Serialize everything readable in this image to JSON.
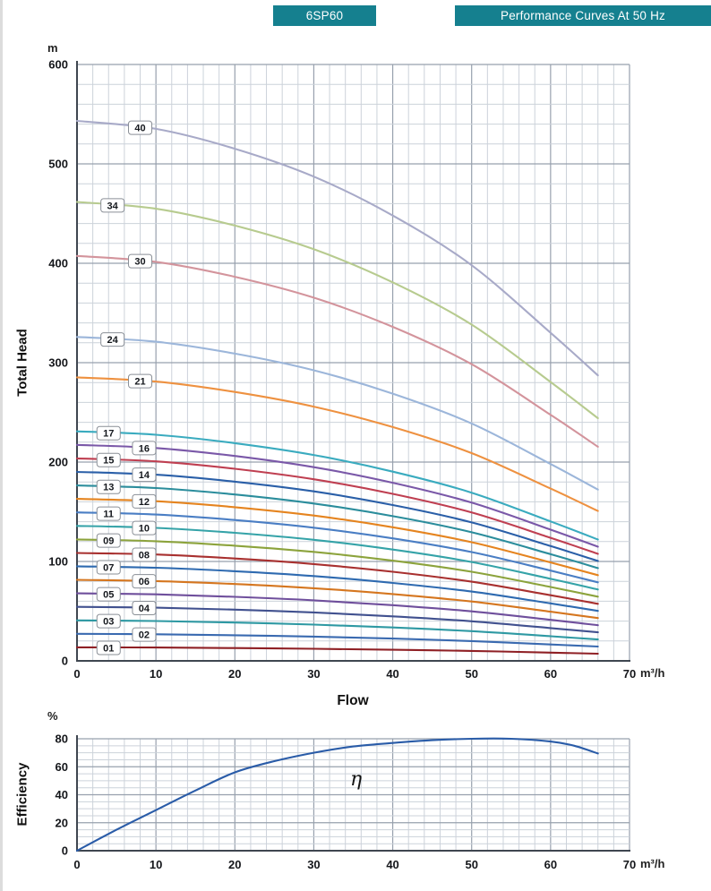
{
  "header": {
    "model": "6SP60",
    "title": "Performance Curves At 50 Hz",
    "badge_color": "#15808f"
  },
  "chart_data": [
    {
      "type": "line",
      "title": "Total Head vs Flow",
      "xlabel": "Flow",
      "ylabel": "Total Head",
      "x_unit": "m³/h",
      "y_unit": "m",
      "xlim": [
        0,
        70
      ],
      "ylim": [
        0,
        600
      ],
      "x_ticks": [
        0,
        10,
        20,
        30,
        40,
        50,
        60,
        70
      ],
      "y_ticks": [
        0,
        100,
        200,
        300,
        400,
        500,
        600
      ],
      "grid": {
        "on": true,
        "x_minor_step": 2,
        "y_minor_step": 20
      },
      "legend_position": "on-curve-labels",
      "x": [
        0,
        10,
        20,
        30,
        40,
        50,
        60,
        66
      ],
      "series": [
        {
          "name": "01",
          "color": "#8f2025",
          "label_x": 4,
          "values": [
            13.6,
            13.4,
            12.9,
            12.2,
            11.2,
            10.0,
            8.3,
            7.2
          ]
        },
        {
          "name": "02",
          "color": "#3a6ab0",
          "label_x": 8.5,
          "values": [
            27.2,
            26.8,
            25.8,
            24.4,
            22.4,
            19.9,
            16.5,
            14.4
          ]
        },
        {
          "name": "03",
          "color": "#2e99a3",
          "label_x": 4,
          "values": [
            40.7,
            40.1,
            38.6,
            36.5,
            33.6,
            29.9,
            24.8,
            21.5
          ]
        },
        {
          "name": "04",
          "color": "#41518f",
          "label_x": 8.5,
          "values": [
            54.3,
            53.5,
            51.5,
            48.7,
            44.8,
            39.8,
            33.0,
            28.7
          ]
        },
        {
          "name": "05",
          "color": "#6f4f9c",
          "label_x": 4,
          "values": [
            67.9,
            66.9,
            64.4,
            60.9,
            56.0,
            49.8,
            41.3,
            35.9
          ]
        },
        {
          "name": "06",
          "color": "#d5761f",
          "label_x": 8.5,
          "values": [
            81.5,
            80.3,
            77.3,
            73.1,
            67.2,
            59.7,
            49.5,
            43.1
          ]
        },
        {
          "name": "07",
          "color": "#2e6ab0",
          "label_x": 4,
          "values": [
            95.1,
            93.7,
            90.2,
            85.3,
            78.4,
            69.7,
            57.8,
            50.3
          ]
        },
        {
          "name": "08",
          "color": "#a8302f",
          "label_x": 8.5,
          "values": [
            108.6,
            107.0,
            103.0,
            97.4,
            89.6,
            79.6,
            66.0,
            57.4
          ]
        },
        {
          "name": "09",
          "color": "#8ca33c",
          "label_x": 4,
          "values": [
            122.2,
            120.4,
            115.9,
            109.6,
            100.8,
            89.6,
            74.3,
            64.6
          ]
        },
        {
          "name": "10",
          "color": "#35a3a8",
          "label_x": 8.5,
          "values": [
            135.8,
            133.8,
            128.8,
            121.8,
            112.0,
            99.5,
            82.5,
            71.8
          ]
        },
        {
          "name": "11",
          "color": "#4a7ec4",
          "label_x": 4,
          "values": [
            149.4,
            147.2,
            141.7,
            134.0,
            123.2,
            109.5,
            90.8,
            79.0
          ]
        },
        {
          "name": "12",
          "color": "#e5841f",
          "label_x": 8.5,
          "values": [
            163.0,
            160.6,
            154.6,
            146.2,
            134.4,
            119.4,
            99.0,
            86.2
          ]
        },
        {
          "name": "13",
          "color": "#2b8d9c",
          "label_x": 4,
          "values": [
            176.5,
            173.9,
            167.4,
            158.3,
            145.6,
            129.4,
            107.3,
            93.3
          ]
        },
        {
          "name": "14",
          "color": "#2a5fa8",
          "label_x": 8.5,
          "values": [
            190.1,
            187.3,
            180.3,
            170.5,
            156.8,
            139.3,
            115.5,
            100.5
          ]
        },
        {
          "name": "15",
          "color": "#bf3f51",
          "label_x": 4,
          "values": [
            203.7,
            200.7,
            193.2,
            182.7,
            168.0,
            149.3,
            123.8,
            107.7
          ]
        },
        {
          "name": "16",
          "color": "#7a58a8",
          "label_x": 8.5,
          "values": [
            217.3,
            214.1,
            206.1,
            194.9,
            179.2,
            159.2,
            132.0,
            114.9
          ]
        },
        {
          "name": "17",
          "color": "#3aabbf",
          "label_x": 4,
          "values": [
            230.9,
            227.5,
            219.0,
            207.1,
            190.4,
            169.2,
            140.3,
            122.1
          ]
        },
        {
          "name": "21",
          "color": "#ee9140",
          "label_x": 8,
          "values": [
            285.2,
            281.0,
            270.5,
            255.8,
            235.2,
            209.0,
            173.3,
            150.8
          ]
        },
        {
          "name": "24",
          "color": "#9cb6da",
          "label_x": 4.5,
          "values": [
            325.9,
            321.1,
            309.1,
            292.3,
            268.8,
            238.8,
            198.0,
            172.3
          ]
        },
        {
          "name": "30",
          "color": "#d3949c",
          "label_x": 8,
          "values": [
            407.4,
            401.4,
            386.4,
            365.4,
            336.0,
            298.5,
            247.5,
            215.4
          ]
        },
        {
          "name": "34",
          "color": "#b7cb8f",
          "label_x": 4.5,
          "values": [
            461.7,
            454.9,
            437.9,
            414.1,
            380.8,
            338.3,
            280.5,
            244.1
          ]
        },
        {
          "name": "40",
          "color": "#a8aac8",
          "label_x": 8,
          "values": [
            543.2,
            535.2,
            515.2,
            487.2,
            448.0,
            398.0,
            330.0,
            287.2
          ]
        }
      ]
    },
    {
      "type": "line",
      "title": "Efficiency vs Flow",
      "xlabel": "",
      "ylabel": "Efficiency",
      "x_unit": "m³/h",
      "y_unit": "%",
      "xlim": [
        0,
        70
      ],
      "ylim": [
        0,
        80
      ],
      "x_ticks": [
        0,
        10,
        20,
        30,
        40,
        50,
        60,
        70
      ],
      "y_ticks": [
        0,
        20,
        40,
        60,
        80
      ],
      "grid": {
        "on": true,
        "x_minor_step": 2,
        "y_minor_step": 5
      },
      "annotation": "η",
      "series": [
        {
          "name": "efficiency",
          "color": "#2a5ca8",
          "x": [
            0,
            5,
            10,
            15,
            20,
            25,
            30,
            35,
            40,
            45,
            50,
            55,
            60,
            63,
            66
          ],
          "values": [
            0,
            15,
            29,
            43,
            56,
            64,
            70,
            74.5,
            77,
            79,
            80,
            80,
            78,
            75,
            69.5
          ]
        }
      ]
    }
  ]
}
